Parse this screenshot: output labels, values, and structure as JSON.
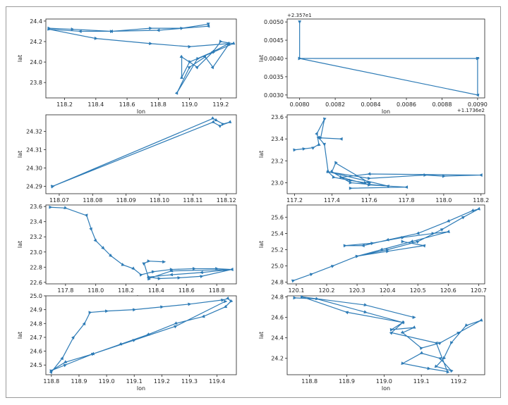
{
  "chart_data": [
    {
      "type": "line",
      "xlabel": "lon",
      "ylabel": "lat",
      "xlim": [
        118.08,
        119.3
      ],
      "ylim": [
        23.65,
        24.42
      ],
      "xticks": [
        118.2,
        118.4,
        118.6,
        118.8,
        119.0,
        119.2
      ],
      "yticks": [
        23.8,
        24.0,
        24.2,
        24.4
      ],
      "xtick_labels": [
        "118.2",
        "118.4",
        "118.6",
        "118.8",
        "119.0",
        "119.2"
      ],
      "ytick_labels": [
        "23.8",
        "24.0",
        "24.2",
        "24.4"
      ],
      "series": [
        {
          "x": [
            118.1,
            118.25,
            118.5,
            118.75,
            118.95,
            119.12,
            119.12,
            118.8,
            118.5,
            118.3,
            118.1,
            118.4,
            118.75,
            119.0,
            119.25,
            119.15,
            119.0,
            118.95,
            118.95,
            119.05,
            119.15,
            119.2,
            119.28,
            119.05,
            118.92,
            119.0,
            119.1,
            119.15,
            119.25
          ],
          "y": [
            24.33,
            24.32,
            24.3,
            24.33,
            24.33,
            24.37,
            24.35,
            24.31,
            24.3,
            24.3,
            24.32,
            24.23,
            24.18,
            24.15,
            24.18,
            24.1,
            24.0,
            23.85,
            24.05,
            23.95,
            24.1,
            24.2,
            24.18,
            24.03,
            23.7,
            23.95,
            24.05,
            23.95,
            24.17
          ]
        }
      ]
    },
    {
      "type": "line",
      "xlabel": "lon",
      "ylabel": "lat",
      "offset_x": "+1.1736e2",
      "offset_y": "+2.357e1",
      "xlim": [
        0.00793,
        0.00904
      ],
      "ylim": [
        0.00292,
        0.00508
      ],
      "xticks": [
        0.008,
        0.0082,
        0.0084,
        0.0086,
        0.0088,
        0.009
      ],
      "yticks": [
        0.003,
        0.0035,
        0.004,
        0.0045,
        0.005
      ],
      "xtick_labels": [
        "0.0080",
        "0.0082",
        "0.0084",
        "0.0086",
        "0.0088",
        "0.0090"
      ],
      "ytick_labels": [
        "0.0030",
        "0.0035",
        "0.0040",
        "0.0045",
        "0.0050"
      ],
      "series": [
        {
          "x": [
            0.008,
            0.008,
            0.009,
            0.009,
            0.008,
            0.009
          ],
          "y": [
            0.005,
            0.004,
            0.004,
            0.003,
            0.004,
            0.004
          ]
        }
      ]
    },
    {
      "type": "line",
      "xlabel": "lon",
      "ylabel": "lat",
      "xlim": [
        118.066,
        118.123
      ],
      "ylim": [
        24.286,
        24.329
      ],
      "xticks": [
        118.07,
        118.08,
        118.09,
        118.1,
        118.11,
        118.12
      ],
      "yticks": [
        24.29,
        24.3,
        24.31,
        24.32
      ],
      "xtick_labels": [
        "118.07",
        "118.08",
        "118.09",
        "118.10",
        "118.11",
        "118.12"
      ],
      "ytick_labels": [
        "24.29",
        "24.30",
        "24.31",
        "24.32"
      ],
      "series": [
        {
          "x": [
            118.068,
            118.116,
            118.117,
            118.119,
            118.121,
            118.118,
            118.116,
            118.068
          ],
          "y": [
            24.29,
            24.327,
            24.326,
            24.324,
            24.325,
            24.323,
            24.325,
            24.29
          ]
        }
      ]
    },
    {
      "type": "line",
      "xlabel": "lon",
      "ylabel": "lat",
      "xlim": [
        117.16,
        118.22
      ],
      "ylim": [
        22.9,
        23.62
      ],
      "xticks": [
        117.2,
        117.4,
        117.6,
        117.8,
        118.0,
        118.2
      ],
      "yticks": [
        23.0,
        23.2,
        23.4,
        23.6
      ],
      "xtick_labels": [
        "117.2",
        "117.4",
        "117.6",
        "117.8",
        "118.0",
        "118.2"
      ],
      "ytick_labels": [
        "23.0",
        "23.2",
        "23.4",
        "23.6"
      ],
      "series": [
        {
          "x": [
            117.2,
            117.25,
            117.3,
            117.33,
            117.32,
            117.36,
            117.34,
            117.45,
            117.33,
            117.36,
            117.38,
            117.41,
            117.5,
            117.58,
            117.6,
            117.42,
            117.4,
            117.5,
            117.7,
            117.38,
            117.6,
            117.9,
            118.0,
            118.2,
            117.6,
            117.45,
            117.6,
            117.8,
            117.5
          ],
          "y": [
            23.3,
            23.31,
            23.32,
            23.35,
            23.45,
            23.58,
            23.41,
            23.4,
            23.41,
            23.35,
            23.1,
            23.05,
            23.02,
            23.0,
            23.0,
            23.18,
            23.1,
            23.0,
            22.97,
            23.1,
            23.04,
            23.07,
            23.06,
            23.07,
            23.08,
            23.05,
            22.98,
            22.96,
            22.95
          ]
        }
      ]
    },
    {
      "type": "line",
      "xlabel": "lon",
      "ylabel": "lat",
      "xlim": [
        117.67,
        118.93
      ],
      "ylim": [
        22.58,
        23.62
      ],
      "xticks": [
        117.8,
        118.0,
        118.2,
        118.4,
        118.6,
        118.8
      ],
      "yticks": [
        22.6,
        22.8,
        23.0,
        23.2,
        23.4,
        23.6
      ],
      "xtick_labels": [
        "117.8",
        "118.0",
        "118.2",
        "118.4",
        "118.6",
        "118.8"
      ],
      "ytick_labels": [
        "22.6",
        "22.8",
        "23.0",
        "23.2",
        "23.4",
        "23.6"
      ],
      "series": [
        {
          "x": [
            117.7,
            117.8,
            117.94,
            117.97,
            118.0,
            118.05,
            118.1,
            118.18,
            118.25,
            118.3,
            118.38,
            118.5,
            118.65,
            118.8,
            118.9,
            118.7,
            118.5,
            118.35,
            118.42,
            118.55,
            118.7,
            118.9,
            118.5,
            118.35,
            118.32,
            118.35,
            118.45
          ],
          "y": [
            23.59,
            23.58,
            23.48,
            23.3,
            23.15,
            23.05,
            22.95,
            22.83,
            22.78,
            22.7,
            22.74,
            22.77,
            22.78,
            22.78,
            22.77,
            22.73,
            22.7,
            22.67,
            22.65,
            22.66,
            22.68,
            22.77,
            22.75,
            22.65,
            22.85,
            22.88,
            22.87
          ]
        }
      ]
    },
    {
      "type": "line",
      "xlabel": "lon",
      "ylabel": "lat",
      "xlim": [
        120.07,
        120.72
      ],
      "ylim": [
        24.78,
        25.75
      ],
      "xticks": [
        120.1,
        120.2,
        120.3,
        120.4,
        120.5,
        120.6,
        120.7
      ],
      "yticks": [
        24.8,
        25.0,
        25.2,
        25.4,
        25.6
      ],
      "xtick_labels": [
        "120.1",
        "120.2",
        "120.3",
        "120.4",
        "120.5",
        "120.6",
        "120.7"
      ],
      "ytick_labels": [
        "24.8",
        "25.0",
        "25.2",
        "25.4",
        "25.6"
      ],
      "series": [
        {
          "x": [
            120.09,
            120.15,
            120.22,
            120.3,
            120.4,
            120.5,
            120.58,
            120.65,
            120.7,
            120.68,
            120.6,
            120.5,
            120.4,
            120.32,
            120.26,
            120.35,
            120.45,
            120.55,
            120.6,
            120.48,
            120.38,
            120.3,
            120.4,
            120.52,
            120.45
          ],
          "y": [
            24.82,
            24.9,
            25.0,
            25.12,
            25.2,
            25.3,
            25.45,
            25.6,
            25.7,
            25.68,
            25.55,
            25.4,
            25.32,
            25.25,
            25.25,
            25.28,
            25.35,
            25.4,
            25.42,
            25.3,
            25.2,
            25.12,
            25.18,
            25.25,
            25.3
          ]
        }
      ]
    },
    {
      "type": "line",
      "xlabel": "lon",
      "ylabel": "lat",
      "xlim": [
        118.78,
        119.47
      ],
      "ylim": [
        24.43,
        25.0
      ],
      "xticks": [
        118.8,
        118.9,
        119.0,
        119.1,
        119.2,
        119.3,
        119.4
      ],
      "yticks": [
        24.5,
        24.6,
        24.7,
        24.8,
        24.9,
        25.0
      ],
      "xtick_labels": [
        "118.8",
        "118.9",
        "119.0",
        "119.1",
        "119.2",
        "119.3",
        "119.4"
      ],
      "ytick_labels": [
        "24.5",
        "24.6",
        "24.7",
        "24.8",
        "24.9",
        "25.0"
      ],
      "series": [
        {
          "x": [
            118.8,
            118.84,
            118.88,
            118.92,
            118.94,
            119.0,
            119.1,
            119.2,
            119.3,
            119.42,
            119.44,
            119.45,
            119.43,
            119.35,
            119.25,
            119.15,
            119.05,
            118.95,
            118.85,
            118.8,
            118.85,
            118.95,
            119.1,
            119.25,
            119.43
          ],
          "y": [
            24.45,
            24.55,
            24.7,
            24.8,
            24.88,
            24.89,
            24.9,
            24.92,
            24.94,
            24.97,
            24.98,
            24.96,
            24.92,
            24.85,
            24.8,
            24.72,
            24.65,
            24.58,
            24.52,
            24.46,
            24.5,
            24.58,
            24.68,
            24.78,
            24.96
          ]
        }
      ]
    },
    {
      "type": "line",
      "xlabel": "lon",
      "ylabel": "lat",
      "xlim": [
        118.74,
        119.27
      ],
      "ylim": [
        24.04,
        24.81
      ],
      "xticks": [
        118.8,
        118.9,
        119.0,
        119.1,
        119.2
      ],
      "yticks": [
        24.2,
        24.4,
        24.6,
        24.8
      ],
      "xtick_labels": [
        "118.8",
        "118.9",
        "119.0",
        "119.1",
        "119.2"
      ],
      "ytick_labels": [
        "24.2",
        "24.4",
        "24.6",
        "24.8"
      ],
      "series": [
        {
          "x": [
            118.76,
            118.82,
            118.95,
            119.05,
            119.02,
            119.08,
            119.05,
            119.1,
            119.15,
            119.2,
            119.26,
            119.22,
            119.18,
            119.16,
            119.14,
            119.18,
            119.15,
            119.1,
            119.05,
            119.12,
            119.17,
            119.14,
            119.02,
            119.05,
            118.9,
            118.78,
            118.95,
            119.08
          ],
          "y": [
            24.79,
            24.78,
            24.65,
            24.55,
            24.48,
            24.5,
            24.45,
            24.3,
            24.35,
            24.45,
            24.57,
            24.52,
            24.35,
            24.2,
            24.12,
            24.08,
            24.2,
            24.25,
            24.15,
            24.1,
            24.07,
            24.35,
            24.45,
            24.55,
            24.65,
            24.8,
            24.72,
            24.6
          ]
        }
      ]
    }
  ],
  "style": {
    "line_color": "#2d7bb6",
    "axis_color": "#222222",
    "frame_border": "#9a9a9a"
  }
}
